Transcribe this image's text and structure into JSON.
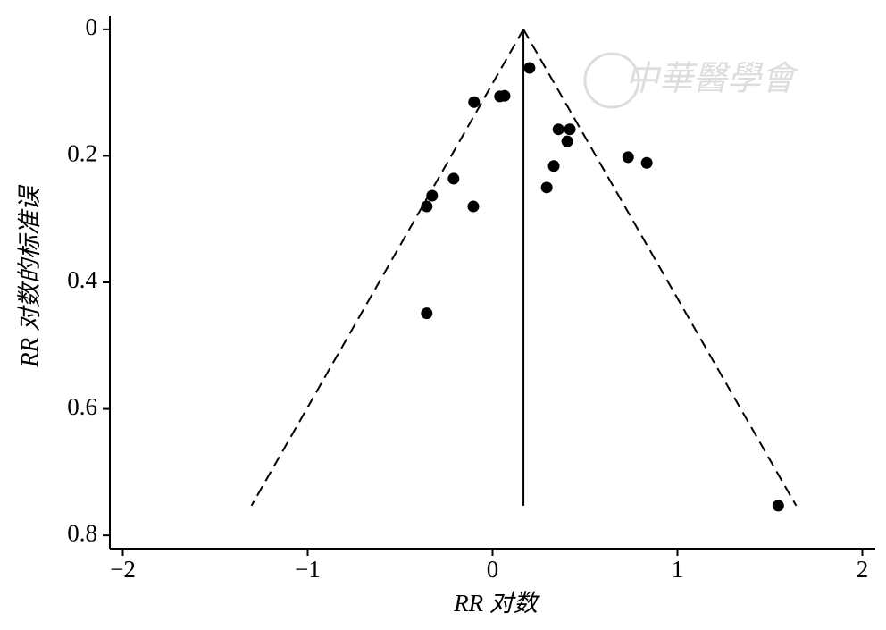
{
  "chart_data": {
    "type": "scatter",
    "xlabel": "RR 对数",
    "ylabel": "RR 对数的标准误",
    "watermark": "中華醫學會",
    "x": [
      0.2,
      -0.1,
      0.04,
      0.065,
      0.356,
      0.418,
      0.404,
      0.733,
      0.834,
      0.331,
      0.293,
      -0.211,
      -0.327,
      -0.356,
      -0.104,
      -0.356,
      1.545
    ],
    "y": [
      0.061,
      0.115,
      0.106,
      0.105,
      0.158,
      0.158,
      0.177,
      0.202,
      0.211,
      0.216,
      0.25,
      0.236,
      0.263,
      0.28,
      0.28,
      0.449,
      0.753
    ],
    "color": "#000000",
    "reference_lines": [
      {
        "x": [
          0.167,
          0.167
        ],
        "y": [
          0,
          0.753
        ],
        "style": "solid"
      },
      {
        "x": [
          0.167,
          -1.304
        ],
        "y": [
          0,
          0.753
        ],
        "style": "dashed"
      },
      {
        "x": [
          0.167,
          1.642
        ],
        "y": [
          0,
          0.753
        ],
        "style": "dashed"
      }
    ],
    "xlim": [
      -2.07,
      2.07
    ],
    "ylim": [
      -0.021,
      0.821
    ],
    "y_inverted": true,
    "xticks": [
      {
        "value": -2,
        "label": "−2"
      },
      {
        "value": -1,
        "label": "−1"
      },
      0,
      1,
      2
    ],
    "yticks": [
      0,
      0.2,
      0.4,
      0.6,
      0.8
    ]
  }
}
